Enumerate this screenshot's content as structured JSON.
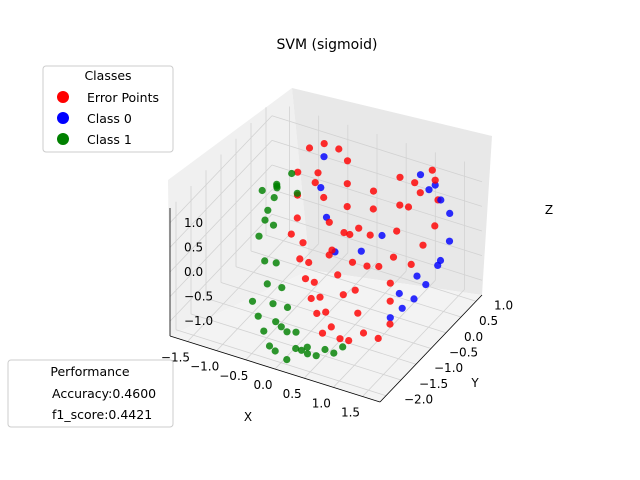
{
  "chart_data": {
    "type": "scatter",
    "projection": "3d",
    "title": "SVM (sigmoid)",
    "xlabel": "X",
    "ylabel": "Y",
    "zlabel": "Z",
    "x_ticks": [
      "−1.5",
      "−1.0",
      "−0.5",
      "0.0",
      "0.5",
      "1.0",
      "1.5"
    ],
    "y_ticks": [
      "−2.0",
      "−1.5",
      "−1.0",
      "−0.5",
      "0.0",
      "0.5",
      "1.0"
    ],
    "z_ticks": [
      "−1.0",
      "−0.5",
      "0.0",
      "0.5",
      "1.0"
    ],
    "xlim": [
      -1.8,
      1.8
    ],
    "ylim": [
      -2.2,
      1.2
    ],
    "zlim": [
      -1.3,
      1.3
    ],
    "grid": true,
    "legend": {
      "title": "Classes",
      "placement": "upper-left",
      "entries": [
        {
          "label": "Error Points",
          "color": "#ff0000"
        },
        {
          "label": "Class 0",
          "color": "#0000ff"
        },
        {
          "label": "Class 1",
          "color": "#008000"
        }
      ]
    },
    "performance": {
      "title": "Performance",
      "placement": "lower-left",
      "accuracy": "Accuracy:0.4600",
      "f1": "f1_score:0.4421"
    },
    "series": [
      {
        "name": "Class 1",
        "color": "#008000",
        "points": [
          [
            -0.9,
            -1.2,
            -0.9
          ],
          [
            -0.7,
            -1.4,
            -1.0
          ],
          [
            -0.5,
            -1.6,
            -1.1
          ],
          [
            -0.3,
            -1.8,
            -1.2
          ],
          [
            -0.1,
            -2.0,
            -1.1
          ],
          [
            0.1,
            -2.0,
            -1.2
          ],
          [
            0.3,
            -1.9,
            -1.0
          ],
          [
            0.5,
            -1.8,
            -1.1
          ],
          [
            -1.0,
            -0.2,
            0.8
          ],
          [
            -1.1,
            0.0,
            0.6
          ],
          [
            -1.2,
            0.2,
            0.4
          ],
          [
            -1.3,
            0.3,
            0.1
          ],
          [
            -1.2,
            -0.4,
            -0.2
          ],
          [
            -1.0,
            -0.6,
            -0.5
          ],
          [
            -0.8,
            -0.9,
            -0.7
          ],
          [
            -0.6,
            -1.1,
            -0.9
          ],
          [
            -0.4,
            -1.4,
            -1.0
          ],
          [
            -0.2,
            -1.6,
            -0.9
          ],
          [
            0.0,
            -1.8,
            -0.8
          ],
          [
            0.2,
            -1.9,
            -1.0
          ],
          [
            0.4,
            -1.9,
            -0.9
          ],
          [
            0.6,
            -1.7,
            -1.0
          ],
          [
            -1.3,
            -0.1,
            0.5
          ],
          [
            -1.1,
            -0.3,
            0.3
          ],
          [
            -0.9,
            -0.5,
            0.2
          ],
          [
            -0.7,
            -0.8,
            -0.3
          ],
          [
            -0.5,
            -1.0,
            -0.6
          ],
          [
            -0.3,
            -1.2,
            -0.8
          ],
          [
            0.0,
            -1.5,
            -1.0
          ],
          [
            0.3,
            -1.7,
            -1.2
          ],
          [
            0.7,
            -1.6,
            -1.1
          ],
          [
            0.8,
            -1.5,
            -1.0
          ],
          [
            -1.0,
            0.3,
            0.7
          ],
          [
            -0.8,
            0.1,
            0.5
          ],
          [
            -1.2,
            -0.2,
            0.0
          ]
        ]
      },
      {
        "name": "Class 0",
        "color": "#0000ff",
        "points": [
          [
            1.2,
            0.6,
            1.0
          ],
          [
            1.3,
            0.8,
            0.7
          ],
          [
            1.4,
            0.9,
            0.4
          ],
          [
            1.5,
            0.7,
            0.0
          ],
          [
            1.4,
            0.5,
            -0.4
          ],
          [
            1.3,
            0.3,
            -0.7
          ],
          [
            1.2,
            0.1,
            -0.9
          ],
          [
            1.1,
            -0.1,
            -1.0
          ],
          [
            1.0,
            -0.3,
            -1.1
          ],
          [
            0.9,
            0.9,
            1.0
          ],
          [
            1.1,
            1.0,
            0.8
          ],
          [
            1.5,
            0.4,
            -0.2
          ],
          [
            -0.6,
            0.6,
            1.0
          ],
          [
            -0.5,
            0.3,
            0.6
          ],
          [
            -0.3,
            0.1,
            0.2
          ],
          [
            0.0,
            -0.2,
            -0.2
          ],
          [
            0.4,
            -0.1,
            -0.1
          ],
          [
            0.6,
            0.2,
            0.1
          ],
          [
            1.2,
            0.2,
            -0.5
          ],
          [
            1.0,
            0.0,
            -0.8
          ]
        ]
      },
      {
        "name": "Error Points",
        "color": "#ff0000",
        "points": [
          [
            -0.9,
            0.7,
            1.0
          ],
          [
            -0.7,
            0.8,
            1.1
          ],
          [
            -0.5,
            0.9,
            1.0
          ],
          [
            -0.3,
            0.8,
            0.9
          ],
          [
            -0.2,
            0.6,
            0.6
          ],
          [
            -0.1,
            0.4,
            0.3
          ],
          [
            0.1,
            0.1,
            0.0
          ],
          [
            0.3,
            -0.2,
            -0.3
          ],
          [
            0.5,
            -0.5,
            -0.6
          ],
          [
            0.7,
            -0.8,
            -0.8
          ],
          [
            0.9,
            -1.0,
            -1.0
          ],
          [
            1.1,
            -0.9,
            -1.1
          ],
          [
            1.2,
            -0.7,
            -0.9
          ],
          [
            1.1,
            -0.5,
            -0.6
          ],
          [
            1.0,
            -0.3,
            -0.4
          ],
          [
            0.9,
            0.0,
            -0.1
          ],
          [
            0.8,
            0.3,
            0.2
          ],
          [
            0.7,
            0.6,
            0.5
          ],
          [
            0.8,
            0.9,
            0.8
          ],
          [
            1.0,
            1.1,
            1.0
          ],
          [
            1.1,
            1.0,
            0.9
          ],
          [
            -1.0,
            0.5,
            0.6
          ],
          [
            -0.9,
            0.3,
            0.3
          ],
          [
            -0.8,
            0.1,
            0.0
          ],
          [
            -0.6,
            -0.1,
            -0.3
          ],
          [
            -0.4,
            -0.3,
            -0.5
          ],
          [
            -0.2,
            -0.5,
            -0.7
          ],
          [
            0.0,
            -0.7,
            -0.8
          ],
          [
            0.2,
            -0.9,
            -0.9
          ],
          [
            0.4,
            -1.1,
            -1.0
          ],
          [
            0.6,
            -1.2,
            -1.1
          ],
          [
            0.8,
            -1.3,
            -1.0
          ],
          [
            -0.6,
            0.4,
            0.8
          ],
          [
            -0.4,
            0.2,
            0.5
          ],
          [
            -0.2,
            0.0,
            0.2
          ],
          [
            0.0,
            -0.3,
            -0.1
          ],
          [
            0.2,
            -0.5,
            -0.4
          ],
          [
            0.4,
            -0.7,
            -0.6
          ],
          [
            0.6,
            -0.3,
            -0.2
          ],
          [
            0.5,
            0.0,
            0.2
          ],
          [
            0.4,
            0.3,
            0.5
          ],
          [
            0.3,
            0.5,
            0.7
          ],
          [
            -0.5,
            -0.4,
            -0.4
          ],
          [
            -0.3,
            -0.6,
            -0.6
          ],
          [
            -0.1,
            -0.8,
            -0.8
          ],
          [
            0.1,
            -1.0,
            -0.9
          ],
          [
            0.3,
            -1.2,
            -1.1
          ],
          [
            0.9,
            0.5,
            0.6
          ],
          [
            1.0,
            0.7,
            0.8
          ],
          [
            0.6,
            0.8,
            0.9
          ],
          [
            1.2,
            0.9,
            0.6
          ],
          [
            1.3,
            0.6,
            0.3
          ],
          [
            1.2,
            0.4,
            0.0
          ],
          [
            1.1,
            0.2,
            -0.3
          ],
          [
            0.7,
            -0.1,
            -0.3
          ],
          [
            -0.7,
            0.5,
            0.5
          ],
          [
            -0.8,
            -0.1,
            -0.2
          ],
          [
            0.2,
            0.2,
            0.1
          ],
          [
            0.0,
            0.1,
            0.0
          ],
          [
            -0.1,
            -0.2,
            -0.3
          ]
        ]
      }
    ]
  }
}
